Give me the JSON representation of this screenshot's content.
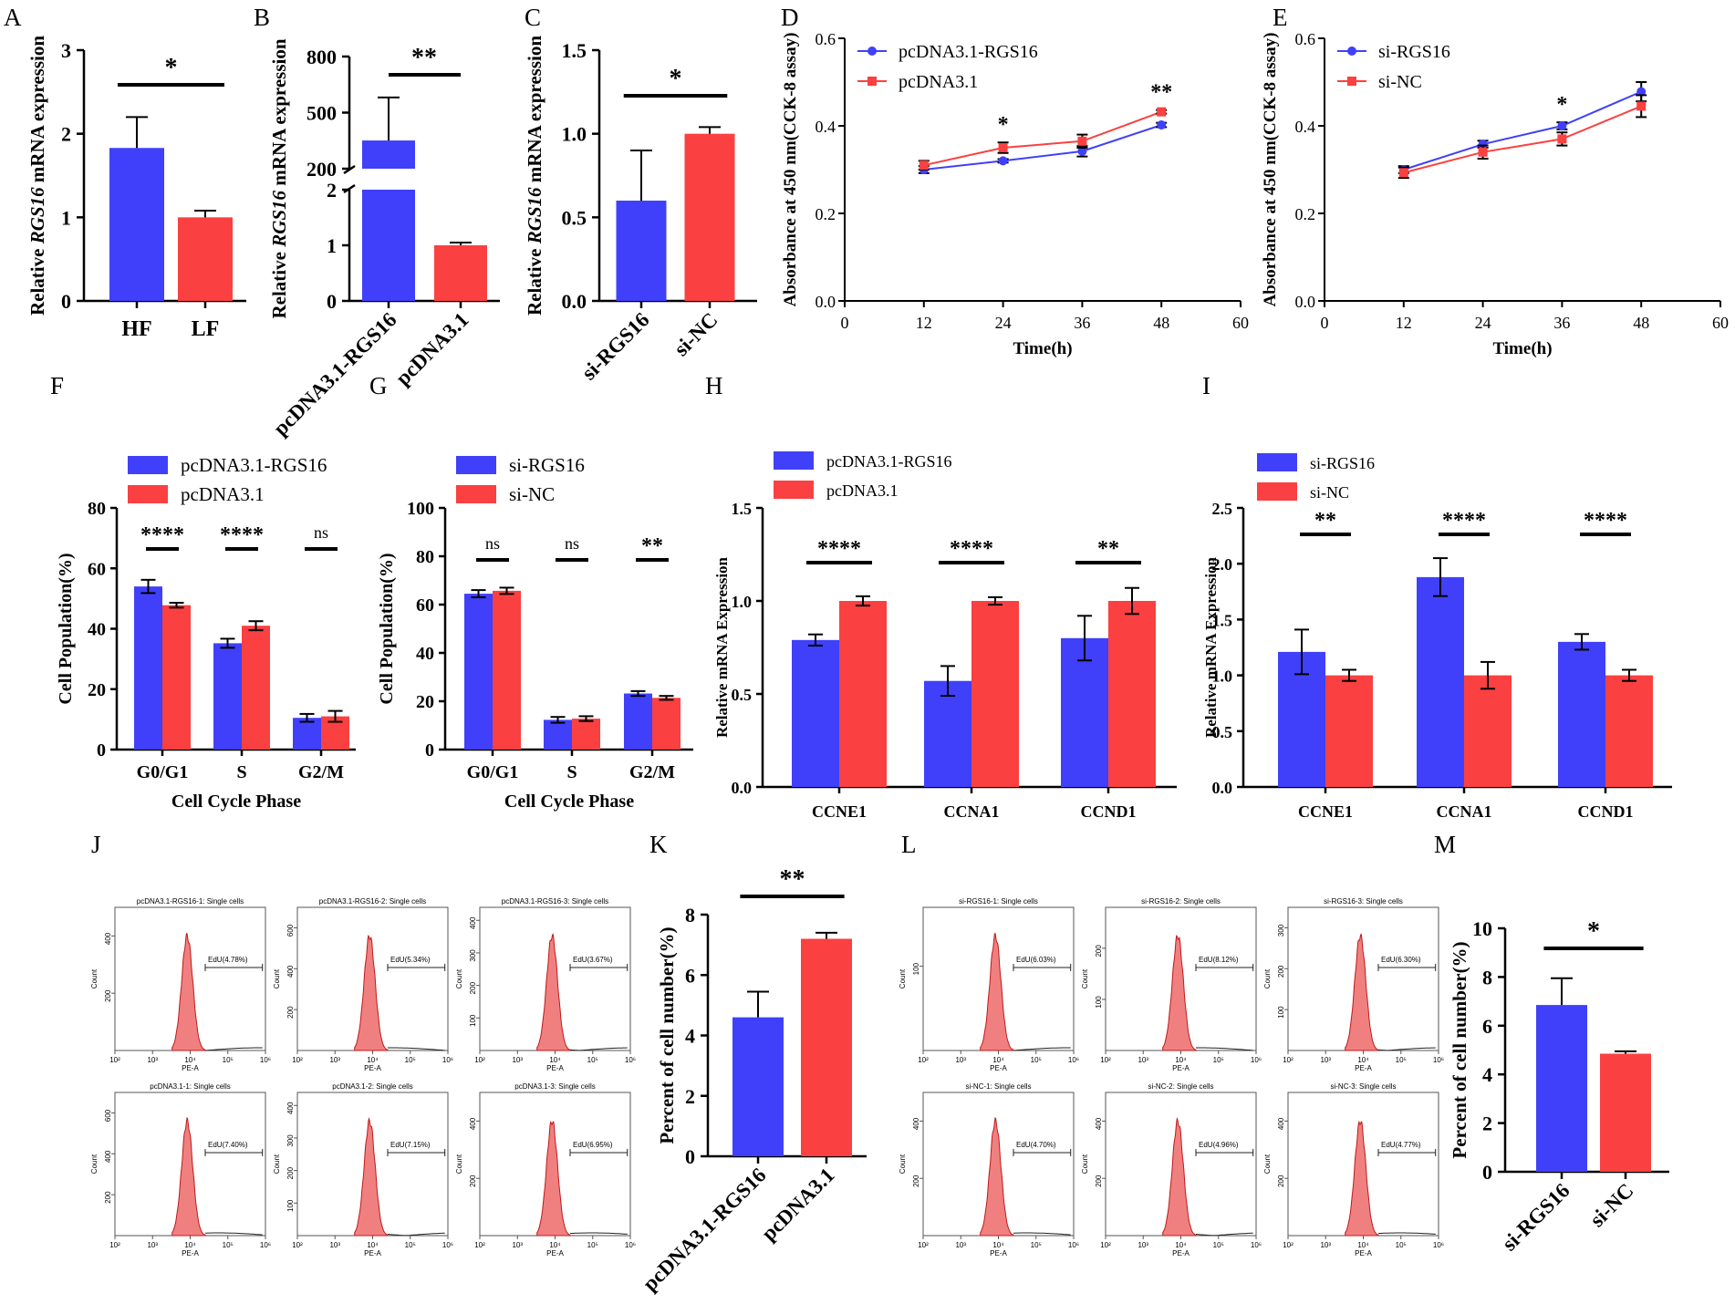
{
  "colors": {
    "blue": "#4040fa",
    "red": "#fa4040",
    "histfill": "#f08080",
    "histline": "#c01818"
  },
  "panel_labels": [
    "A",
    "B",
    "C",
    "D",
    "E",
    "F",
    "G",
    "H",
    "I",
    "J",
    "K",
    "L",
    "M"
  ],
  "chart_data": [
    {
      "panel": "A",
      "type": "bar",
      "categories": [
        "HF",
        "LF"
      ],
      "values": [
        1.83,
        1.0
      ],
      "errors": [
        0.37,
        0.08
      ],
      "ylabel_parts": [
        "Relative ",
        "RGS16",
        " mRNA expression"
      ],
      "ylim": [
        0,
        3
      ],
      "yticks": [
        "0",
        "1",
        "2",
        "3"
      ],
      "signif": "*"
    },
    {
      "panel": "B",
      "type": "bar",
      "broken_axis": true,
      "categories": [
        "pcDNA3.1-RGS16",
        "pcDNA3.1"
      ],
      "values": [
        351,
        1.0
      ],
      "errors": [
        230,
        0.05
      ],
      "ylabel_parts": [
        "Relative ",
        "RGS16",
        " mRNA expression"
      ],
      "yticks_lower": [
        "0",
        "1",
        "2"
      ],
      "yticks_upper": [
        "200",
        "500",
        "800"
      ],
      "lower_range": [
        0,
        2
      ],
      "upper_range": [
        200,
        800
      ],
      "signif": "**"
    },
    {
      "panel": "C",
      "type": "bar",
      "categories": [
        "si-RGS16",
        "si-NC"
      ],
      "values": [
        0.6,
        1.0
      ],
      "errors": [
        0.3,
        0.04
      ],
      "ylabel_parts": [
        "Relative ",
        "RGS16",
        " mRNA expression"
      ],
      "ylim": [
        0,
        1.5
      ],
      "yticks": [
        "0.0",
        "0.5",
        "1.0",
        "1.5"
      ],
      "signif": "*"
    },
    {
      "panel": "D",
      "type": "line",
      "x": [
        12,
        24,
        36,
        48
      ],
      "series": [
        {
          "name": "pcDNA3.1-RGS16",
          "values": [
            0.3,
            0.32,
            0.342,
            0.402
          ],
          "errors": [
            0.008,
            0.004,
            0.012,
            0.005
          ]
        },
        {
          "name": "pcDNA3.1",
          "values": [
            0.31,
            0.35,
            0.365,
            0.432
          ],
          "errors": [
            0.01,
            0.012,
            0.015,
            0.004
          ]
        }
      ],
      "ylabel": "Absorbance at 450 nm(CCK-8 assay)",
      "xlabel": "Time(h)",
      "xlim": [
        0,
        60
      ],
      "ylim": [
        0,
        0.6
      ],
      "xticks": [
        "0",
        "12",
        "24",
        "36",
        "48",
        "60"
      ],
      "yticks": [
        "0.0",
        "0.2",
        "0.4",
        "0.6"
      ],
      "annotations": [
        {
          "x": 24,
          "text": "*"
        },
        {
          "x": 48,
          "text": "**"
        }
      ]
    },
    {
      "panel": "E",
      "type": "line",
      "x": [
        12,
        24,
        36,
        48
      ],
      "series": [
        {
          "name": "si-RGS16",
          "values": [
            0.3,
            0.358,
            0.4,
            0.478
          ],
          "errors": [
            0.008,
            0.008,
            0.008,
            0.022
          ]
        },
        {
          "name": "si-NC",
          "values": [
            0.293,
            0.34,
            0.37,
            0.445
          ],
          "errors": [
            0.012,
            0.015,
            0.015,
            0.025
          ]
        }
      ],
      "ylabel": "Absorbance at 450 nm(CCK-8 assay)",
      "xlabel": "Time(h)",
      "xlim": [
        0,
        60
      ],
      "ylim": [
        0,
        0.6
      ],
      "xticks": [
        "0",
        "12",
        "24",
        "36",
        "48",
        "60"
      ],
      "yticks": [
        "0.0",
        "0.2",
        "0.4",
        "0.6"
      ],
      "annotations": [
        {
          "x": 36,
          "text": "*"
        }
      ]
    },
    {
      "panel": "F",
      "type": "grouped_bar",
      "categories": [
        "G0/G1",
        "S",
        "G2/M"
      ],
      "series": [
        {
          "name": "pcDNA3.1-RGS16",
          "values": [
            54,
            35.2,
            10.5
          ],
          "errors": [
            2.2,
            1.5,
            1.3
          ]
        },
        {
          "name": "pcDNA3.1",
          "values": [
            47.8,
            41,
            11
          ],
          "errors": [
            0.8,
            1.5,
            1.8
          ]
        }
      ],
      "ylabel": "Cell Population(%)",
      "xlabel": "Cell Cycle Phase",
      "ylim": [
        0,
        80
      ],
      "yticks": [
        "0",
        "20",
        "40",
        "60",
        "80"
      ],
      "signif": [
        "****",
        "****",
        "ns"
      ]
    },
    {
      "panel": "G",
      "type": "grouped_bar",
      "categories": [
        "G0/G1",
        "S",
        "G2/M"
      ],
      "series": [
        {
          "name": "si-RGS16",
          "values": [
            64.5,
            12.3,
            23.2
          ],
          "errors": [
            1.5,
            1.2,
            1.0
          ]
        },
        {
          "name": "si-NC",
          "values": [
            65.7,
            12.8,
            21.4
          ],
          "errors": [
            1.3,
            1.0,
            0.8
          ]
        }
      ],
      "ylabel": "Cell Population(%)",
      "xlabel": "Cell Cycle Phase",
      "ylim": [
        0,
        100
      ],
      "yticks": [
        "0",
        "20",
        "40",
        "60",
        "80",
        "100"
      ],
      "signif": [
        "ns",
        "ns",
        "**"
      ]
    },
    {
      "panel": "H",
      "type": "grouped_bar",
      "categories": [
        "CCNE1",
        "CCNA1",
        "CCND1"
      ],
      "series": [
        {
          "name": "pcDNA3.1-RGS16",
          "values": [
            0.79,
            0.57,
            0.8
          ],
          "errors": [
            0.03,
            0.08,
            0.12
          ]
        },
        {
          "name": "pcDNA3.1",
          "values": [
            1.0,
            1.0,
            1.0
          ],
          "errors": [
            0.025,
            0.02,
            0.07
          ]
        }
      ],
      "ylabel": "Relative mRNA Expression",
      "ylim": [
        0,
        1.5
      ],
      "yticks": [
        "0.0",
        "0.5",
        "1.0",
        "1.5"
      ],
      "signif": [
        "****",
        "****",
        "**"
      ]
    },
    {
      "panel": "I",
      "type": "grouped_bar",
      "categories": [
        "CCNE1",
        "CCNA1",
        "CCND1"
      ],
      "series": [
        {
          "name": "si-RGS16",
          "values": [
            1.21,
            1.88,
            1.3
          ],
          "errors": [
            0.2,
            0.17,
            0.07
          ]
        },
        {
          "name": "si-NC",
          "values": [
            1.0,
            1.0,
            1.0
          ],
          "errors": [
            0.05,
            0.12,
            0.05
          ]
        }
      ],
      "ylabel": "Relative mRNA Expression",
      "ylim": [
        0,
        2.5
      ],
      "yticks": [
        "0.0",
        "0.5",
        "1.0",
        "1.5",
        "2.0",
        "2.5"
      ],
      "signif": [
        "**",
        "****",
        "****"
      ]
    },
    {
      "panel": "K",
      "type": "bar",
      "categories": [
        "pcDNA3.1-RGS16",
        "pcDNA3.1"
      ],
      "values": [
        4.6,
        7.2
      ],
      "errors": [
        0.85,
        0.2
      ],
      "ylabel": "Percent of cell number(%)",
      "ylim": [
        0,
        8
      ],
      "yticks": [
        "0",
        "2",
        "4",
        "6",
        "8"
      ],
      "signif": "**"
    },
    {
      "panel": "M",
      "type": "bar",
      "categories": [
        "si-RGS16",
        "si-NC"
      ],
      "values": [
        6.85,
        4.85
      ],
      "errors": [
        1.1,
        0.1
      ],
      "ylabel": "Percent of cell number(%)",
      "ylim": [
        0,
        10
      ],
      "yticks": [
        "0",
        "2",
        "4",
        "6",
        "8",
        "10"
      ],
      "signif": "*"
    }
  ],
  "flow_panels": [
    {
      "panel": "J",
      "plots": [
        {
          "title": "pcDNA3.1-RGS16-1: Single cells",
          "gate": "EdU(4.78%)",
          "yticks": [
            "200",
            "400"
          ],
          "ymax": 500
        },
        {
          "title": "pcDNA3.1-RGS16-2: Single cells",
          "gate": "EdU(5.34%)",
          "yticks": [
            "200",
            "400",
            "600"
          ],
          "ymax": 700
        },
        {
          "title": "pcDNA3.1-RGS16-3: Single cells",
          "gate": "EdU(3.67%)",
          "yticks": [
            "100",
            "200",
            "300",
            "400"
          ],
          "ymax": 440
        },
        {
          "title": "pcDNA3.1-1: Single cells",
          "gate": "EdU(7.40%)",
          "yticks": [
            "200",
            "400",
            "600"
          ],
          "ymax": 700
        },
        {
          "title": "pcDNA3.1-2: Single cells",
          "gate": "EdU(7.15%)",
          "yticks": [
            "100",
            "200",
            "300",
            "400"
          ],
          "ymax": 440
        },
        {
          "title": "pcDNA3.1-3: Single cells",
          "gate": "EdU(6.95%)",
          "yticks": [
            "200",
            "400"
          ],
          "ymax": 500
        }
      ]
    },
    {
      "panel": "L",
      "plots": [
        {
          "title": "si-RGS16-1: Single cells",
          "gate": "EdU(6.03%)",
          "yticks": [
            "100"
          ],
          "ymax": 170
        },
        {
          "title": "si-RGS16-2: Single cells",
          "gate": "EdU(8.12%)",
          "yticks": [
            "100",
            "200"
          ],
          "ymax": 280
        },
        {
          "title": "si-RGS16-3: Single cells",
          "gate": "EdU(6.30%)",
          "yticks": [
            "100",
            "200",
            "300"
          ],
          "ymax": 350
        },
        {
          "title": "si-NC-1: Single cells",
          "gate": "EdU(4.70%)",
          "yticks": [
            "200",
            "400"
          ],
          "ymax": 500
        },
        {
          "title": "si-NC-2: Single cells",
          "gate": "EdU(4.96%)",
          "yticks": [
            "200",
            "400"
          ],
          "ymax": 500
        },
        {
          "title": "si-NC-3: Single cells",
          "gate": "EdU(4.77%)",
          "yticks": [
            "200",
            "400"
          ],
          "ymax": 500
        }
      ]
    }
  ],
  "flow_axes": {
    "xlabel": "PE-A",
    "ylabel": "Count",
    "xticks": [
      "10²",
      "10³",
      "10⁴",
      "10⁵",
      "10⁶"
    ]
  }
}
